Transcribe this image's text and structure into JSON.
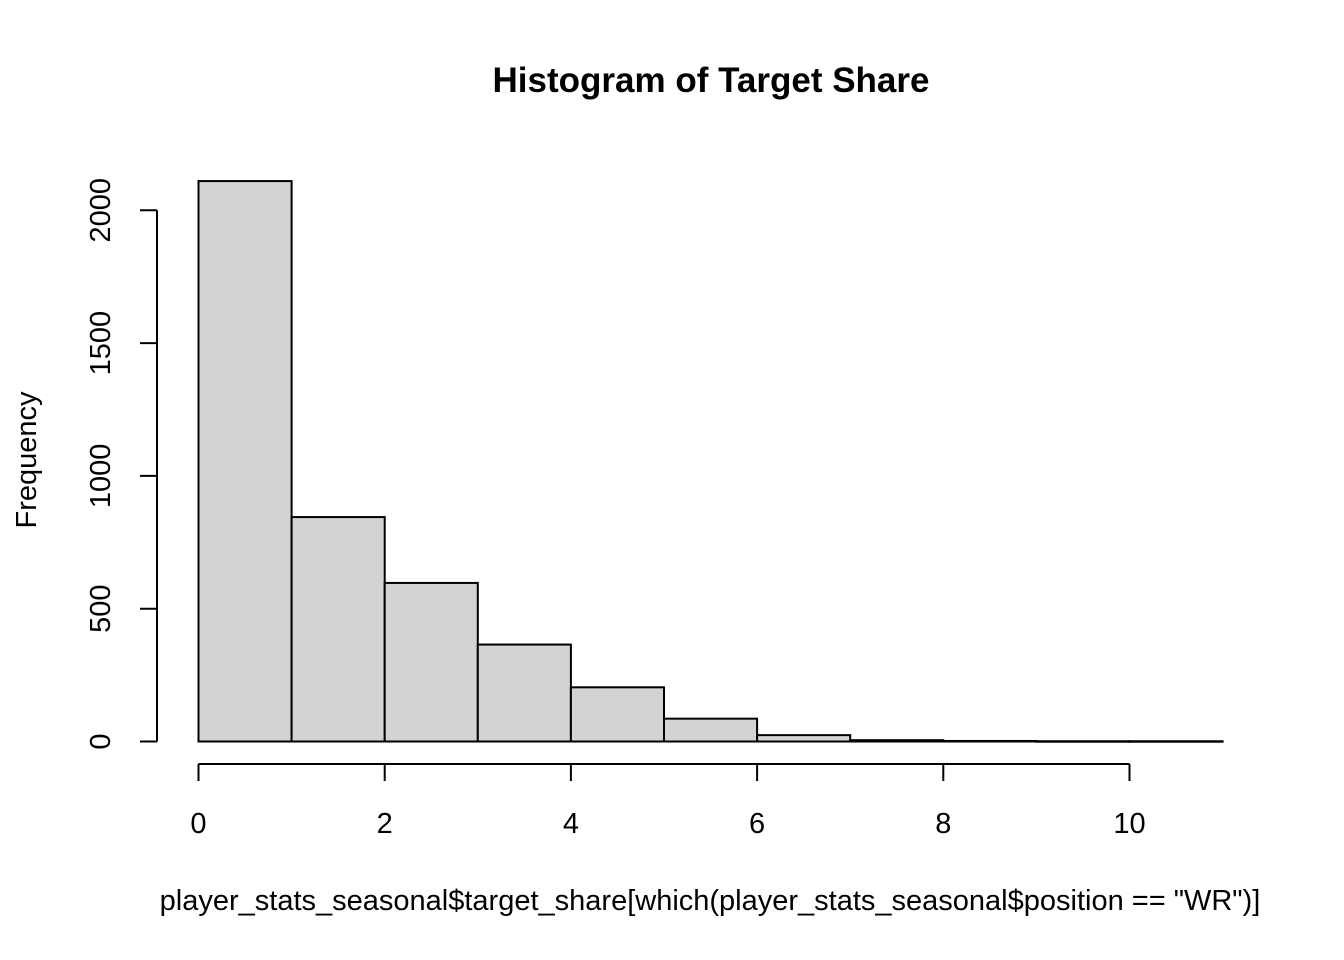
{
  "chart_data": {
    "type": "bar",
    "subtype": "histogram",
    "title": "Histogram of Target Share",
    "xlabel": "player_stats_seasonal$target_share[which(player_stats_seasonal$position == \"WR\")]",
    "ylabel": "Frequency",
    "bins": [
      {
        "start": 0,
        "end": 1,
        "count": 2110
      },
      {
        "start": 1,
        "end": 2,
        "count": 845
      },
      {
        "start": 2,
        "end": 3,
        "count": 597
      },
      {
        "start": 3,
        "end": 4,
        "count": 365
      },
      {
        "start": 4,
        "end": 5,
        "count": 204
      },
      {
        "start": 5,
        "end": 6,
        "count": 86
      },
      {
        "start": 6,
        "end": 7,
        "count": 24
      },
      {
        "start": 7,
        "end": 8,
        "count": 5
      },
      {
        "start": 8,
        "end": 9,
        "count": 2
      },
      {
        "start": 9,
        "end": 10,
        "count": 1
      },
      {
        "start": 10,
        "end": 11,
        "count": 1
      }
    ],
    "xlim": [
      0,
      11
    ],
    "ylim": [
      0,
      2110
    ],
    "xticks": [
      0,
      2,
      4,
      6,
      8,
      10
    ],
    "yticks": [
      0,
      500,
      1000,
      1500,
      2000
    ],
    "bar_color": "#d3d3d3",
    "grid": false
  }
}
